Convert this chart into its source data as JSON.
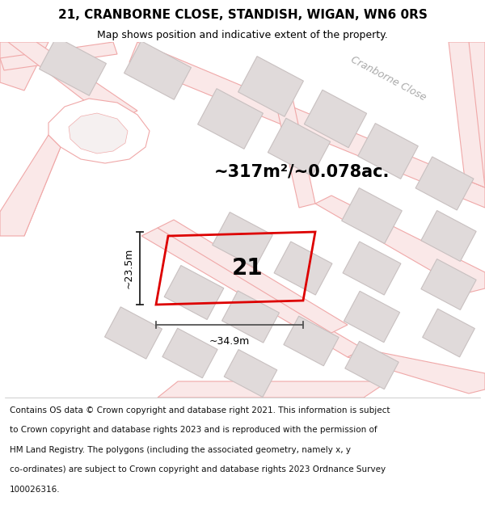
{
  "title": "21, CRANBORNE CLOSE, STANDISH, WIGAN, WN6 0RS",
  "subtitle": "Map shows position and indicative extent of the property.",
  "area_text": "~317m²/~0.078ac.",
  "plot_number": "21",
  "dim_width": "~34.9m",
  "dim_height": "~23.5m",
  "road_label": "Cranborne Close",
  "footer_lines": [
    "Contains OS data © Crown copyright and database right 2021. This information is subject",
    "to Crown copyright and database rights 2023 and is reproduced with the permission of",
    "HM Land Registry. The polygons (including the associated geometry, namely x, y",
    "co-ordinates) are subject to Crown copyright and database rights 2023 Ordnance Survey",
    "100026316."
  ],
  "map_bg": "#ffffff",
  "road_line_color": "#f0a8a8",
  "road_fill_color": "#fae8e8",
  "building_fill": "#e0dada",
  "building_edge": "#c8c0c0",
  "plot_color": "#dd0000",
  "dim_color": "#333333",
  "title_fontsize": 11,
  "subtitle_fontsize": 9,
  "area_fontsize": 15,
  "number_fontsize": 20,
  "road_label_fontsize": 9,
  "footer_fontsize": 7.5
}
